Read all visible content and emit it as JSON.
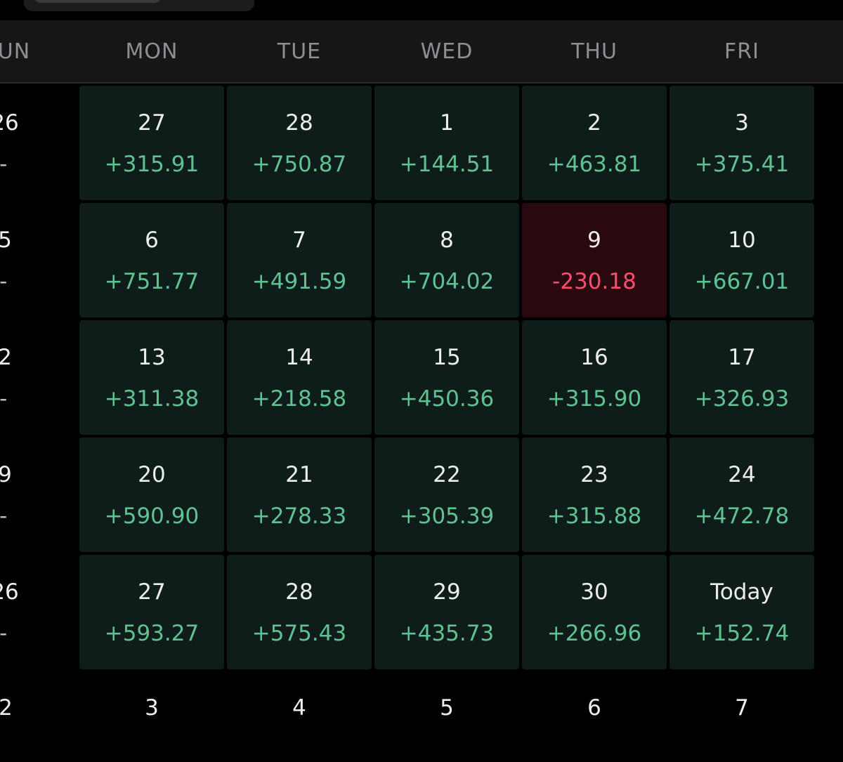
{
  "colors": {
    "background": "#000000",
    "header_bg": "#161617",
    "cell_profit_bg": "#0e1d19",
    "cell_loss_bg": "#2a0810",
    "profit_text": "#5fc293",
    "loss_text": "#ff4d6d"
  },
  "weekdays": [
    "UN",
    "MON",
    "TUE",
    "WED",
    "THU",
    "FRI"
  ],
  "weeks": [
    {
      "sunday": {
        "day": "26",
        "pnl": "--"
      },
      "days": [
        {
          "day": "27",
          "pnl": "+315.91",
          "status": "profit"
        },
        {
          "day": "28",
          "pnl": "+750.87",
          "status": "profit"
        },
        {
          "day": "1",
          "pnl": "+144.51",
          "status": "profit"
        },
        {
          "day": "2",
          "pnl": "+463.81",
          "status": "profit"
        },
        {
          "day": "3",
          "pnl": "+375.41",
          "status": "profit"
        }
      ]
    },
    {
      "sunday": {
        "day": "5",
        "pnl": "--"
      },
      "days": [
        {
          "day": "6",
          "pnl": "+751.77",
          "status": "profit"
        },
        {
          "day": "7",
          "pnl": "+491.59",
          "status": "profit"
        },
        {
          "day": "8",
          "pnl": "+704.02",
          "status": "profit"
        },
        {
          "day": "9",
          "pnl": "-230.18",
          "status": "loss"
        },
        {
          "day": "10",
          "pnl": "+667.01",
          "status": "profit"
        }
      ]
    },
    {
      "sunday": {
        "day": "2",
        "pnl": "--"
      },
      "days": [
        {
          "day": "13",
          "pnl": "+311.38",
          "status": "profit"
        },
        {
          "day": "14",
          "pnl": "+218.58",
          "status": "profit"
        },
        {
          "day": "15",
          "pnl": "+450.36",
          "status": "profit"
        },
        {
          "day": "16",
          "pnl": "+315.90",
          "status": "profit"
        },
        {
          "day": "17",
          "pnl": "+326.93",
          "status": "profit"
        }
      ]
    },
    {
      "sunday": {
        "day": "9",
        "pnl": "--"
      },
      "days": [
        {
          "day": "20",
          "pnl": "+590.90",
          "status": "profit"
        },
        {
          "day": "21",
          "pnl": "+278.33",
          "status": "profit"
        },
        {
          "day": "22",
          "pnl": "+305.39",
          "status": "profit"
        },
        {
          "day": "23",
          "pnl": "+315.88",
          "status": "profit"
        },
        {
          "day": "24",
          "pnl": "+472.78",
          "status": "profit"
        }
      ]
    },
    {
      "sunday": {
        "day": "26",
        "pnl": "--"
      },
      "days": [
        {
          "day": "27",
          "pnl": "+593.27",
          "status": "profit"
        },
        {
          "day": "28",
          "pnl": "+575.43",
          "status": "profit"
        },
        {
          "day": "29",
          "pnl": "+435.73",
          "status": "profit"
        },
        {
          "day": "30",
          "pnl": "+266.96",
          "status": "profit"
        },
        {
          "day": "Today",
          "pnl": "+152.74",
          "status": "profit"
        }
      ]
    }
  ],
  "next_week": [
    "2",
    "3",
    "4",
    "5",
    "6",
    "7"
  ]
}
